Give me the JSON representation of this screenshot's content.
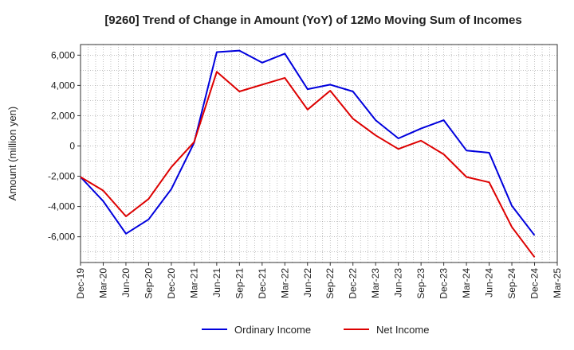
{
  "chart_data": {
    "type": "line",
    "title": "[9260]  Trend of Change in Amount (YoY) of 12Mo Moving Sum of Incomes",
    "xlabel": "",
    "ylabel": "Amount (million yen)",
    "ylim": [
      -7700,
      6700
    ],
    "yticks": [
      -6000,
      -4000,
      -2000,
      0,
      2000,
      4000,
      6000
    ],
    "ytick_labels": [
      "-6,000",
      "-4,000",
      "-2,000",
      "0",
      "2,000",
      "4,000",
      "6,000"
    ],
    "categories": [
      "Dec-19",
      "Mar-20",
      "Jun-20",
      "Sep-20",
      "Dec-20",
      "Mar-21",
      "Jun-21",
      "Sep-21",
      "Dec-21",
      "Mar-22",
      "Jun-22",
      "Sep-22",
      "Dec-22",
      "Mar-23",
      "Jun-23",
      "Sep-23",
      "Dec-23",
      "Mar-24",
      "Jun-24",
      "Sep-24",
      "Dec-24",
      "Mar-25"
    ],
    "grid": true,
    "legend_position": "bottom",
    "series": [
      {
        "name": "Ordinary Income",
        "color": "#0000dd",
        "values": [
          -2050,
          -3650,
          -5800,
          -4850,
          -2850,
          200,
          6200,
          6300,
          5500,
          6100,
          3750,
          4050,
          3600,
          1700,
          500,
          1150,
          1700,
          -300,
          -450,
          -3950,
          -5900,
          null
        ]
      },
      {
        "name": "Net Income",
        "color": "#dd0000",
        "values": [
          -2050,
          -2950,
          -4650,
          -3500,
          -1400,
          250,
          4900,
          3600,
          4050,
          4500,
          2400,
          3650,
          1800,
          700,
          -200,
          350,
          -550,
          -2050,
          -2400,
          -5350,
          -7350,
          null
        ]
      }
    ]
  }
}
